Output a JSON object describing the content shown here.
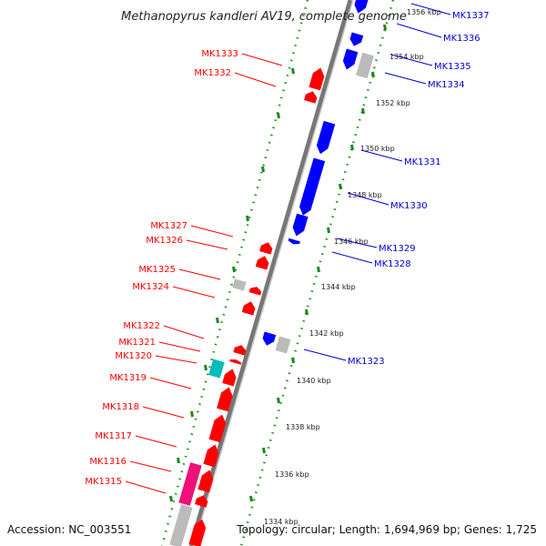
{
  "title": "Methanopyrus kandleri AV19, complete genome",
  "footer": {
    "accession": "Accession: NC_003551",
    "info": "Topology: circular; Length: 1,694,969 bp; Genes: 1,725"
  },
  "colors": {
    "forward_gene": "#ff0000",
    "reverse_gene": "#0000ff",
    "rna": "#00bbbb",
    "other": "#ee1177",
    "gray": "#bbbbbb",
    "scale_dots": "#228b22"
  },
  "ticks": [
    "1356 kbp",
    "1354 kbp",
    "1352 kbp",
    "1350 kbp",
    "1348 kbp",
    "1346 kbp",
    "1344 kbp",
    "1342 kbp",
    "1340 kbp",
    "1338 kbp",
    "1336 kbp",
    "1334 kbp"
  ],
  "left_labels": [
    "MK1333",
    "MK1332",
    "MK1327",
    "MK1326",
    "MK1325",
    "MK1324",
    "MK1322",
    "MK1321",
    "MK1320",
    "MK1319",
    "MK1318",
    "MK1317",
    "MK1316",
    "MK1315"
  ],
  "right_labels": [
    "MK1337",
    "MK1336",
    "MK1335",
    "MK1334",
    "MK1331",
    "MK1330",
    "MK1329",
    "MK1328",
    "MK1323"
  ]
}
